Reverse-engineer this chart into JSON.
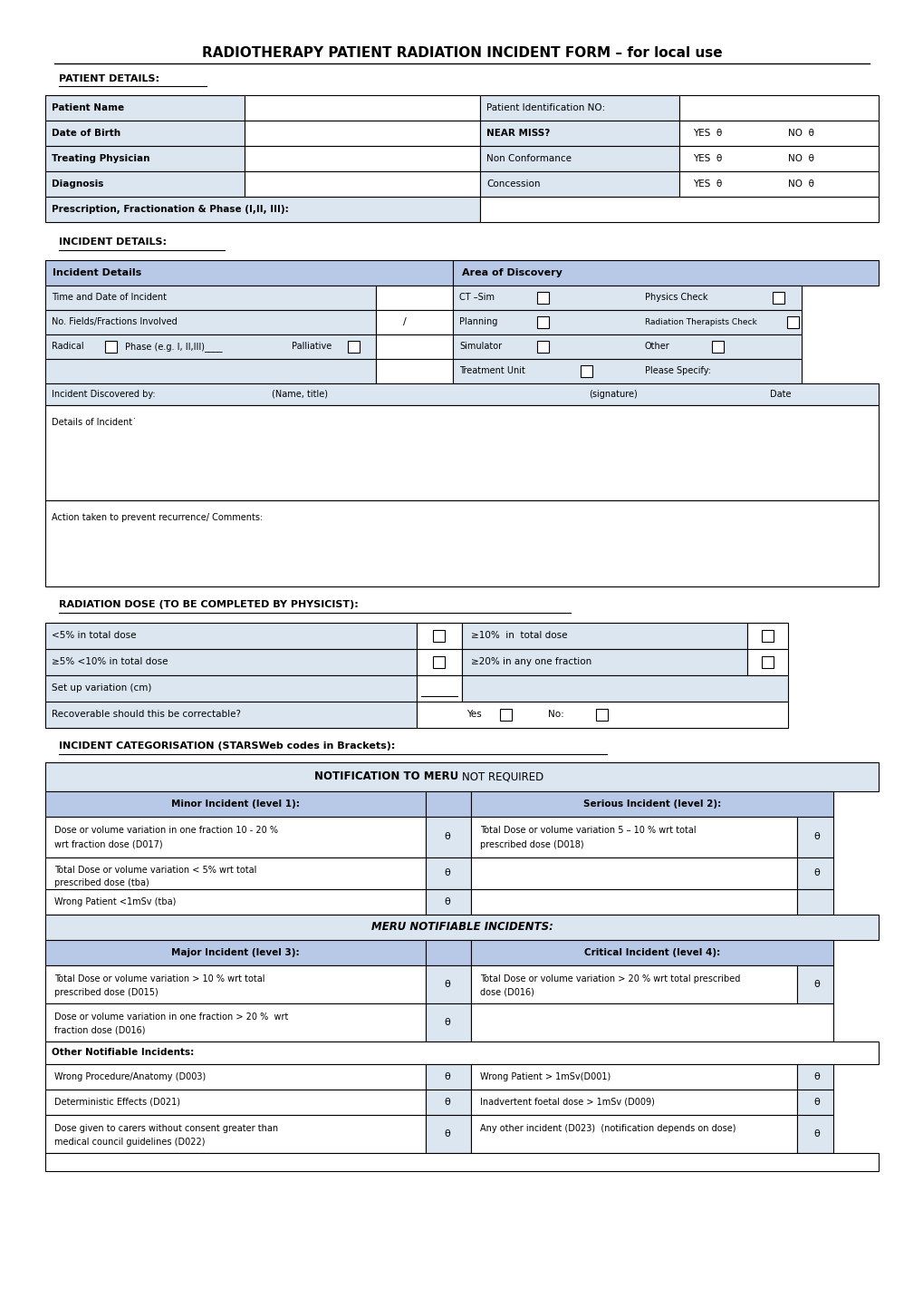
{
  "title": "RADIOTHERAPY PATIENT RADIATION INCIDENT FORM – for local use",
  "bg_color": "#ffffff",
  "header_bg": "#b8c9e8",
  "light_blue": "#dce6f1",
  "white": "#ffffff",
  "border_color": "#000000",
  "patient_details_label": "PATIENT DETAILS:",
  "incident_details_label": "INCIDENT DETAILS:",
  "radiation_dose_label": "RADIATION DOSE (TO BE COMPLETED BY PHYSICIST):",
  "incident_cat_label": "INCIDENT CATEGORISATION (STARSWeb codes in Brackets):"
}
